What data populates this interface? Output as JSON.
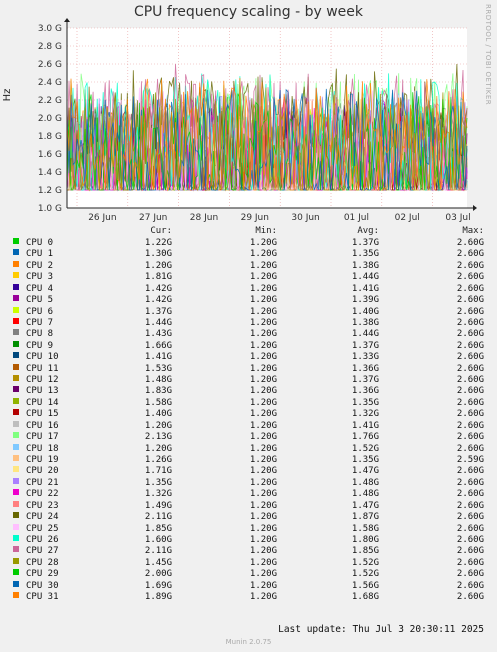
{
  "title": "CPU frequency scaling - by week",
  "watermark": "RRDTOOL / TOBI OETIKER",
  "legend_headers": {
    "cur": "Cur:",
    "min": "Min:",
    "avg": "Avg:",
    "max": "Max:"
  },
  "last_update": "Last update: Thu Jul  3 20:30:11 2025",
  "footer": "Munin 2.0.75",
  "chart_data": {
    "type": "line",
    "title": "CPU frequency scaling - by week",
    "ylabel": "Hz",
    "xlabel": "",
    "ylim": [
      1.0,
      3.0
    ],
    "y_ticks": [
      "1.0 G",
      "1.2 G",
      "1.4 G",
      "1.6 G",
      "1.8 G",
      "2.0 G",
      "2.2 G",
      "2.4 G",
      "2.6 G",
      "2.8 G",
      "3.0 G"
    ],
    "x_ticks": [
      "26 Jun",
      "27 Jun",
      "28 Jun",
      "29 Jun",
      "30 Jun",
      "01 Jul",
      "02 Jul",
      "03 Jul"
    ],
    "grid": true,
    "legend_placement": "bottom",
    "series": [
      {
        "name": "CPU 0",
        "color": "#00cc00",
        "cur": "1.22G",
        "min": "1.20G",
        "avg": "1.37G",
        "max": "2.60G"
      },
      {
        "name": "CPU 1",
        "color": "#0066b3",
        "cur": "1.30G",
        "min": "1.20G",
        "avg": "1.35G",
        "max": "2.60G"
      },
      {
        "name": "CPU 2",
        "color": "#ff8000",
        "cur": "1.20G",
        "min": "1.20G",
        "avg": "1.38G",
        "max": "2.60G"
      },
      {
        "name": "CPU 3",
        "color": "#ffcc00",
        "cur": "1.81G",
        "min": "1.20G",
        "avg": "1.44G",
        "max": "2.60G"
      },
      {
        "name": "CPU 4",
        "color": "#330099",
        "cur": "1.42G",
        "min": "1.20G",
        "avg": "1.41G",
        "max": "2.60G"
      },
      {
        "name": "CPU 5",
        "color": "#990099",
        "cur": "1.42G",
        "min": "1.20G",
        "avg": "1.39G",
        "max": "2.60G"
      },
      {
        "name": "CPU 6",
        "color": "#ccff00",
        "cur": "1.37G",
        "min": "1.20G",
        "avg": "1.40G",
        "max": "2.60G"
      },
      {
        "name": "CPU 7",
        "color": "#ff0000",
        "cur": "1.44G",
        "min": "1.20G",
        "avg": "1.38G",
        "max": "2.60G"
      },
      {
        "name": "CPU 8",
        "color": "#808080",
        "cur": "1.43G",
        "min": "1.20G",
        "avg": "1.44G",
        "max": "2.60G"
      },
      {
        "name": "CPU 9",
        "color": "#008f00",
        "cur": "1.66G",
        "min": "1.20G",
        "avg": "1.37G",
        "max": "2.60G"
      },
      {
        "name": "CPU 10",
        "color": "#00487d",
        "cur": "1.41G",
        "min": "1.20G",
        "avg": "1.33G",
        "max": "2.60G"
      },
      {
        "name": "CPU 11",
        "color": "#b35a00",
        "cur": "1.53G",
        "min": "1.20G",
        "avg": "1.36G",
        "max": "2.60G"
      },
      {
        "name": "CPU 12",
        "color": "#b38f00",
        "cur": "1.48G",
        "min": "1.20G",
        "avg": "1.37G",
        "max": "2.60G"
      },
      {
        "name": "CPU 13",
        "color": "#6b006b",
        "cur": "1.83G",
        "min": "1.20G",
        "avg": "1.36G",
        "max": "2.60G"
      },
      {
        "name": "CPU 14",
        "color": "#8fb300",
        "cur": "1.58G",
        "min": "1.20G",
        "avg": "1.35G",
        "max": "2.60G"
      },
      {
        "name": "CPU 15",
        "color": "#b30000",
        "cur": "1.40G",
        "min": "1.20G",
        "avg": "1.32G",
        "max": "2.60G"
      },
      {
        "name": "CPU 16",
        "color": "#bebebe",
        "cur": "1.20G",
        "min": "1.20G",
        "avg": "1.41G",
        "max": "2.60G"
      },
      {
        "name": "CPU 17",
        "color": "#80ff80",
        "cur": "2.13G",
        "min": "1.20G",
        "avg": "1.76G",
        "max": "2.60G"
      },
      {
        "name": "CPU 18",
        "color": "#80c9ff",
        "cur": "1.20G",
        "min": "1.20G",
        "avg": "1.52G",
        "max": "2.60G"
      },
      {
        "name": "CPU 19",
        "color": "#ffc080",
        "cur": "1.26G",
        "min": "1.20G",
        "avg": "1.35G",
        "max": "2.59G"
      },
      {
        "name": "CPU 20",
        "color": "#ffe680",
        "cur": "1.71G",
        "min": "1.20G",
        "avg": "1.47G",
        "max": "2.60G"
      },
      {
        "name": "CPU 21",
        "color": "#aa80ff",
        "cur": "1.35G",
        "min": "1.20G",
        "avg": "1.48G",
        "max": "2.60G"
      },
      {
        "name": "CPU 22",
        "color": "#ee00cc",
        "cur": "1.32G",
        "min": "1.20G",
        "avg": "1.48G",
        "max": "2.60G"
      },
      {
        "name": "CPU 23",
        "color": "#ff8080",
        "cur": "1.49G",
        "min": "1.20G",
        "avg": "1.47G",
        "max": "2.60G"
      },
      {
        "name": "CPU 24",
        "color": "#666600",
        "cur": "2.11G",
        "min": "1.20G",
        "avg": "1.87G",
        "max": "2.60G"
      },
      {
        "name": "CPU 25",
        "color": "#ffbfff",
        "cur": "1.85G",
        "min": "1.20G",
        "avg": "1.58G",
        "max": "2.60G"
      },
      {
        "name": "CPU 26",
        "color": "#00ffcc",
        "cur": "1.60G",
        "min": "1.20G",
        "avg": "1.80G",
        "max": "2.60G"
      },
      {
        "name": "CPU 27",
        "color": "#cc6699",
        "cur": "2.11G",
        "min": "1.20G",
        "avg": "1.85G",
        "max": "2.60G"
      },
      {
        "name": "CPU 28",
        "color": "#999900",
        "cur": "1.45G",
        "min": "1.20G",
        "avg": "1.52G",
        "max": "2.60G"
      },
      {
        "name": "CPU 29",
        "color": "#00cc00",
        "cur": "2.00G",
        "min": "1.20G",
        "avg": "1.52G",
        "max": "2.60G"
      },
      {
        "name": "CPU 30",
        "color": "#0066b3",
        "cur": "1.69G",
        "min": "1.20G",
        "avg": "1.56G",
        "max": "2.60G"
      },
      {
        "name": "CPU 31",
        "color": "#ff8000",
        "cur": "1.89G",
        "min": "1.20G",
        "avg": "1.68G",
        "max": "2.60G"
      }
    ]
  }
}
